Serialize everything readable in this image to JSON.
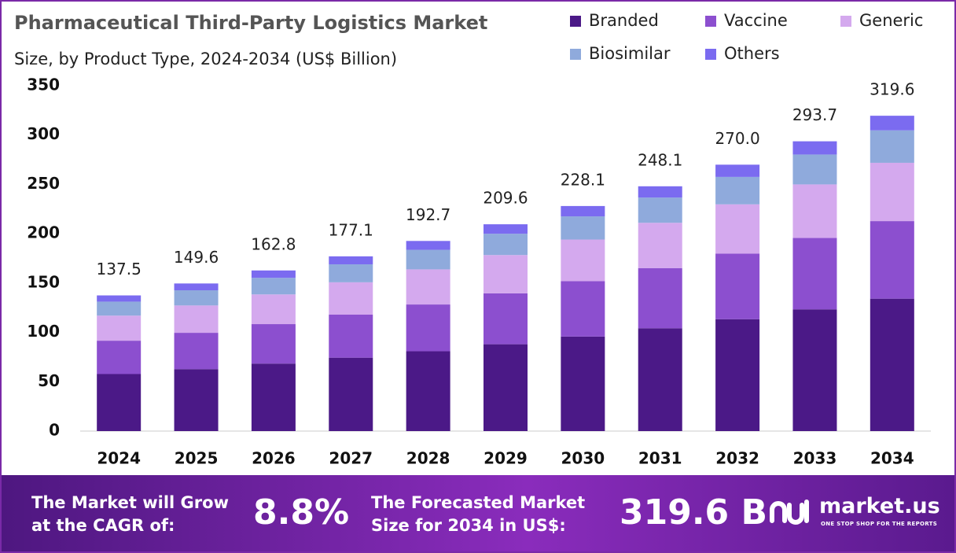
{
  "chart_data": {
    "type": "stacked-bar",
    "title": "Pharmaceutical Third-Party Logistics Market",
    "subtitle": "Size, by Product Type, 2024-2034 (US$ Billion)",
    "categories": [
      "2024",
      "2025",
      "2026",
      "2027",
      "2028",
      "2029",
      "2030",
      "2031",
      "2032",
      "2033",
      "2034"
    ],
    "series": [
      {
        "name": "Branded",
        "color": "#4b1987",
        "values": [
          57.8,
          62.8,
          68.4,
          74.4,
          80.9,
          88.0,
          95.8,
          104.2,
          113.4,
          123.4,
          134.2
        ]
      },
      {
        "name": "Vaccine",
        "color": "#8c4fcf",
        "values": [
          33.8,
          36.8,
          40.0,
          43.6,
          47.4,
          51.6,
          56.1,
          61.0,
          66.4,
          72.3,
          78.6
        ]
      },
      {
        "name": "Generic",
        "color": "#d4a9ee",
        "values": [
          25.4,
          27.7,
          30.1,
          32.8,
          35.6,
          38.8,
          42.2,
          45.9,
          50.0,
          54.3,
          59.1
        ]
      },
      {
        "name": "Biosimilar",
        "color": "#8faadc",
        "values": [
          14.2,
          15.4,
          16.8,
          18.2,
          19.8,
          21.6,
          23.5,
          25.6,
          27.8,
          30.3,
          32.9
        ]
      },
      {
        "name": "Others",
        "color": "#7b6bf0",
        "values": [
          6.3,
          6.9,
          7.5,
          8.1,
          9.0,
          9.6,
          10.5,
          11.4,
          12.4,
          13.4,
          14.8
        ]
      }
    ],
    "totals": [
      137.5,
      149.6,
      162.8,
      177.1,
      192.7,
      209.6,
      228.1,
      248.1,
      270.0,
      293.7,
      319.6
    ],
    "total_labels": [
      "137.5",
      "149.6",
      "162.8",
      "177.1",
      "192.7",
      "209.6",
      "228.1",
      "248.1",
      "270.0",
      "293.7",
      "319.6"
    ],
    "ylim": [
      0,
      350
    ],
    "yticks": [
      0,
      50,
      100,
      150,
      200,
      250,
      300,
      350
    ],
    "grid": false,
    "legend": "top-right"
  },
  "footer": {
    "cagr_caption": "The Market will Grow at the CAGR of:",
    "cagr_value": "8.8%",
    "forecast_caption": "The Forecasted Market Size for 2034 in US$:",
    "forecast_value": "319.6 B",
    "brand": "market.us",
    "tagline": "ONE STOP SHOP FOR THE REPORTS"
  }
}
